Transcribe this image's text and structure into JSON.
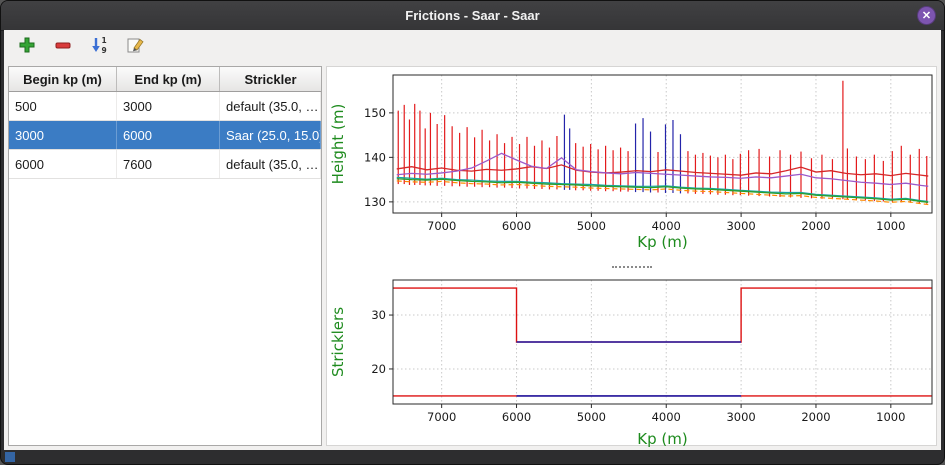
{
  "window": {
    "title": "Frictions - Saar - Saar",
    "close_label": "✕"
  },
  "colors": {
    "selection": "#3b7cc4",
    "axis_label_green": "#1e8b1e",
    "close_button": "#7d55b0"
  },
  "toolbar": {
    "buttons": [
      {
        "name": "add",
        "icon": "plus-icon"
      },
      {
        "name": "remove",
        "icon": "minus-icon"
      },
      {
        "name": "sort",
        "icon": "sort-numeric-icon"
      },
      {
        "name": "edit",
        "icon": "edit-pencil-icon"
      }
    ],
    "sort_digit_top": "1",
    "sort_digit_bottom": "9"
  },
  "table": {
    "columns": [
      "Begin kp (m)",
      "End kp (m)",
      "Strickler"
    ],
    "rows": [
      [
        "500",
        "3000",
        "default (35.0, …"
      ],
      [
        "3000",
        "6000",
        "Saar (25.0, 15.0)"
      ],
      [
        "6000",
        "7600",
        "default (35.0, …"
      ]
    ],
    "selected_index": 1
  },
  "chart_data": [
    {
      "type": "line",
      "title": "",
      "xlabel": "Kp (m)",
      "ylabel": "Height (m)",
      "xlim": [
        7650,
        450
      ],
      "ylim": [
        127.5,
        158.5
      ],
      "xticks": [
        7000,
        6000,
        5000,
        4000,
        3000,
        2000,
        1000
      ],
      "yticks": [
        130,
        140,
        150
      ],
      "grid": true,
      "legend": "none",
      "bar_colors": {
        "r": "#e31a1c",
        "b": "#2424aa"
      },
      "bars": [
        [
          7580,
          134,
          150.5,
          "r"
        ],
        [
          7500,
          134,
          151.8,
          "r"
        ],
        [
          7430,
          133.8,
          148.5,
          "r"
        ],
        [
          7360,
          133.8,
          152,
          "r"
        ],
        [
          7290,
          133.8,
          150.5,
          "r"
        ],
        [
          7220,
          133.7,
          146.5,
          "r"
        ],
        [
          7150,
          133.7,
          150,
          "r"
        ],
        [
          7060,
          133.6,
          147.5,
          "r"
        ],
        [
          6960,
          133.6,
          149.5,
          "r"
        ],
        [
          6860,
          133.5,
          147,
          "r"
        ],
        [
          6760,
          133.5,
          145.5,
          "r"
        ],
        [
          6660,
          133.4,
          146.8,
          "r"
        ],
        [
          6560,
          133.4,
          144.5,
          "r"
        ],
        [
          6460,
          133.3,
          146.2,
          "r"
        ],
        [
          6360,
          133.3,
          143.8,
          "r"
        ],
        [
          6260,
          133.2,
          145.2,
          "r"
        ],
        [
          6160,
          133.2,
          143.2,
          "r"
        ],
        [
          6060,
          133.1,
          144.6,
          "r"
        ],
        [
          5960,
          133.0,
          143.0,
          "r"
        ],
        [
          5860,
          133.0,
          144.6,
          "r"
        ],
        [
          5760,
          132.9,
          142.6,
          "r"
        ],
        [
          5660,
          132.9,
          143.8,
          "r"
        ],
        [
          5560,
          132.8,
          142.2,
          "r"
        ],
        [
          5460,
          132.8,
          144.8,
          "r"
        ],
        [
          5360,
          132.7,
          149.6,
          "b"
        ],
        [
          5290,
          132.7,
          146.5,
          "b"
        ],
        [
          5210,
          132.6,
          143.2,
          "r"
        ],
        [
          5110,
          132.6,
          142.4,
          "r"
        ],
        [
          5010,
          132.5,
          143.0,
          "r"
        ],
        [
          4910,
          132.5,
          141.8,
          "r"
        ],
        [
          4810,
          132.4,
          142.6,
          "r"
        ],
        [
          4710,
          132.4,
          141.6,
          "r"
        ],
        [
          4610,
          132.3,
          142.2,
          "r"
        ],
        [
          4510,
          132.3,
          141.4,
          "r"
        ],
        [
          4410,
          132.2,
          147.6,
          "b"
        ],
        [
          4310,
          132.2,
          148.8,
          "b"
        ],
        [
          4210,
          132.1,
          145.8,
          "b"
        ],
        [
          4110,
          132.1,
          141.2,
          "r"
        ],
        [
          4010,
          132.0,
          147.4,
          "b"
        ],
        [
          3910,
          132.0,
          148.4,
          "b"
        ],
        [
          3810,
          131.9,
          145.2,
          "b"
        ],
        [
          3710,
          131.9,
          141.4,
          "r"
        ],
        [
          3610,
          131.8,
          140.6,
          "r"
        ],
        [
          3510,
          131.8,
          141.0,
          "r"
        ],
        [
          3410,
          131.7,
          140.4,
          "r"
        ],
        [
          3310,
          131.6,
          140.0,
          "r"
        ],
        [
          3210,
          131.6,
          140.6,
          "r"
        ],
        [
          3110,
          131.5,
          139.6,
          "r"
        ],
        [
          3010,
          131.5,
          140.8,
          "r"
        ],
        [
          2900,
          131.4,
          141.6,
          "r"
        ],
        [
          2760,
          131.3,
          141.9,
          "r"
        ],
        [
          2620,
          131.2,
          140.2,
          "r"
        ],
        [
          2480,
          131.1,
          141.6,
          "r"
        ],
        [
          2340,
          131.0,
          140.6,
          "r"
        ],
        [
          2200,
          130.9,
          141.3,
          "r"
        ],
        [
          2060,
          130.8,
          139.8,
          "r"
        ],
        [
          1920,
          130.7,
          140.6,
          "r"
        ],
        [
          1780,
          130.6,
          139.6,
          "r"
        ],
        [
          1640,
          130.6,
          157.2,
          "r"
        ],
        [
          1580,
          130.5,
          142.0,
          "r"
        ],
        [
          1460,
          130.4,
          140.2,
          "r"
        ],
        [
          1340,
          130.3,
          139.6,
          "r"
        ],
        [
          1220,
          130.2,
          140.6,
          "r"
        ],
        [
          1100,
          130.1,
          139.2,
          "r"
        ],
        [
          980,
          130.0,
          141.4,
          "r"
        ],
        [
          860,
          129.9,
          142.6,
          "r"
        ],
        [
          740,
          129.8,
          140.6,
          "r"
        ],
        [
          620,
          129.7,
          141.9,
          "r"
        ],
        [
          520,
          129.6,
          140.3,
          "r"
        ]
      ],
      "x": [
        7600,
        7400,
        7200,
        7000,
        6800,
        6600,
        6400,
        6200,
        6000,
        5800,
        5600,
        5400,
        5200,
        5000,
        4800,
        4600,
        4400,
        4200,
        4000,
        3800,
        3600,
        3400,
        3200,
        3000,
        2800,
        2600,
        2400,
        2200,
        2000,
        1800,
        1600,
        1400,
        1200,
        1000,
        800,
        600,
        500
      ],
      "series": [
        {
          "name": "water-level-line",
          "color": "#d62728",
          "width": 1.3,
          "y": [
            137.4,
            137.9,
            137.2,
            137.6,
            137.1,
            136.9,
            137.3,
            137.1,
            137.4,
            137.9,
            137.5,
            138.3,
            137.1,
            136.7,
            136.5,
            136.7,
            137.0,
            136.8,
            137.2,
            136.9,
            136.6,
            136.4,
            136.2,
            136.0,
            136.5,
            136.3,
            137.0,
            137.8,
            136.7,
            137.0,
            136.4,
            136.1,
            136.3,
            135.9,
            136.4,
            136.0,
            135.8
          ]
        },
        {
          "name": "bank-line-purple",
          "color": "#9b59c9",
          "width": 1.3,
          "y": [
            136.1,
            136.4,
            136.2,
            136.5,
            136.9,
            137.6,
            139.2,
            140.9,
            139.4,
            138.0,
            137.5,
            139.9,
            137.2,
            136.8,
            136.5,
            136.3,
            136.6,
            136.4,
            136.2,
            136.0,
            135.8,
            135.6,
            135.5,
            135.3,
            135.6,
            135.4,
            135.8,
            136.2,
            135.4,
            135.2,
            134.8,
            134.4,
            134.2,
            133.9,
            134.2,
            133.7,
            133.5
          ]
        },
        {
          "name": "bed-line-teal",
          "color": "#17a2a2",
          "width": 1.2,
          "y": [
            135.5,
            135.3,
            135.1,
            135.3,
            135.0,
            134.9,
            134.7,
            134.6,
            134.6,
            134.4,
            134.3,
            134.1,
            134.0,
            133.9,
            133.7,
            133.6,
            133.5,
            133.5,
            133.6,
            133.3,
            133.1,
            133.0,
            132.8,
            132.6,
            132.4,
            132.2,
            132.1,
            132.1,
            131.7,
            131.5,
            131.3,
            131.1,
            130.9,
            130.6,
            130.8,
            130.3,
            130.1
          ]
        },
        {
          "name": "bottom-line-green",
          "color": "#2ca02c",
          "width": 1.3,
          "y": [
            135.2,
            135.0,
            134.9,
            135.1,
            134.8,
            134.6,
            134.5,
            134.3,
            134.4,
            134.2,
            134.0,
            133.9,
            133.8,
            133.6,
            133.5,
            133.4,
            133.3,
            133.2,
            133.4,
            133.1,
            132.9,
            132.8,
            132.6,
            132.4,
            132.2,
            132.0,
            131.8,
            131.9,
            131.5,
            131.3,
            131.1,
            130.9,
            130.7,
            130.4,
            130.6,
            130.1,
            129.9
          ]
        },
        {
          "name": "thalweg-line-orange-dashed",
          "color": "#ff8c00",
          "width": 1.2,
          "dash": "5,3",
          "y": [
            134.7,
            134.5,
            134.4,
            134.6,
            134.3,
            134.1,
            134.0,
            133.8,
            133.9,
            133.7,
            133.5,
            133.4,
            133.3,
            133.1,
            133.0,
            132.9,
            132.8,
            132.7,
            132.9,
            132.6,
            132.4,
            132.3,
            132.1,
            131.9,
            131.7,
            131.5,
            131.3,
            131.4,
            131.0,
            130.8,
            130.6,
            130.4,
            130.2,
            129.9,
            130.1,
            129.6,
            129.4
          ]
        }
      ]
    },
    {
      "type": "line",
      "title": "",
      "xlabel": "Kp (m)",
      "ylabel": "Stricklers",
      "xlim": [
        7650,
        450
      ],
      "ylim": [
        13.5,
        36.5
      ],
      "xticks": [
        7000,
        6000,
        5000,
        4000,
        3000,
        2000,
        1000
      ],
      "yticks": [
        20,
        30
      ],
      "grid": true,
      "legend": "none",
      "bar_colors": {},
      "bars": [],
      "series": [
        {
          "name": "minor-bed-strickler-step",
          "color": "#dd1111",
          "width": 1.4,
          "x": [
            7650,
            6000,
            6000,
            3000,
            3000,
            450
          ],
          "y": [
            35,
            35,
            25,
            25,
            35,
            35
          ]
        },
        {
          "name": "major-bed-strickler",
          "color": "#dd1111",
          "width": 1.4,
          "x": [
            7650,
            450
          ],
          "y": [
            15,
            15
          ]
        },
        {
          "name": "selected-zone-minor",
          "color": "#2222aa",
          "width": 1.6,
          "x": [
            6000,
            3000
          ],
          "y": [
            25,
            25
          ]
        },
        {
          "name": "selected-zone-major",
          "color": "#2222aa",
          "width": 1.6,
          "x": [
            6000,
            3000
          ],
          "y": [
            15,
            15
          ]
        }
      ]
    }
  ]
}
